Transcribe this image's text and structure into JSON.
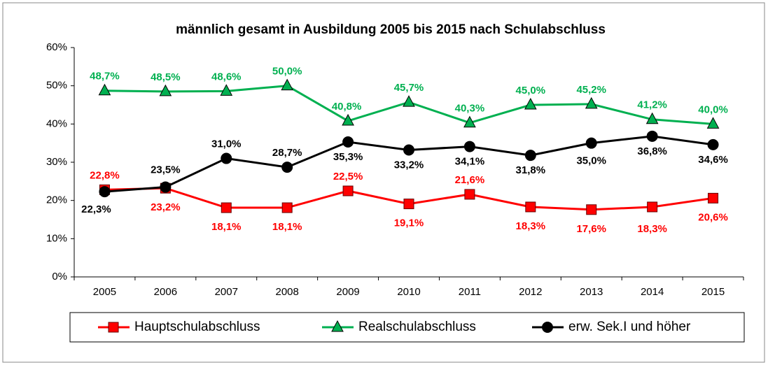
{
  "chart_data": {
    "type": "line",
    "title": "männlich gesamt in Ausbildung 2005 bis 2015 nach Schulabschluss",
    "categories": [
      "2005",
      "2006",
      "2007",
      "2008",
      "2009",
      "2010",
      "2011",
      "2012",
      "2013",
      "2014",
      "2015"
    ],
    "ylim": [
      0,
      60
    ],
    "yticks": [
      {
        "value": 0,
        "label": "0%"
      },
      {
        "value": 10,
        "label": "10%"
      },
      {
        "value": 20,
        "label": "20%"
      },
      {
        "value": 30,
        "label": "30%"
      },
      {
        "value": 40,
        "label": "40%"
      },
      {
        "value": 50,
        "label": "50%"
      },
      {
        "value": 60,
        "label": "60%"
      }
    ],
    "grid": false,
    "legend": "bottom",
    "series": [
      {
        "name": "Hauptschulabschluss",
        "color": "#ff0000",
        "marker": "square",
        "values": [
          22.8,
          23.2,
          18.1,
          18.1,
          22.5,
          19.1,
          21.6,
          18.3,
          17.6,
          18.3,
          20.6
        ],
        "value_labels": [
          "22,8%",
          "23,2%",
          "18,1%",
          "18,1%",
          "22,5%",
          "19,1%",
          "21,6%",
          "18,3%",
          "17,6%",
          "18,3%",
          "20,6%"
        ]
      },
      {
        "name": "Realschulabschluss",
        "color": "#00b050",
        "marker": "triangle",
        "values": [
          48.7,
          48.5,
          48.6,
          50.0,
          40.8,
          45.7,
          40.3,
          45.0,
          45.2,
          41.2,
          40.0
        ],
        "value_labels": [
          "48,7%",
          "48,5%",
          "48,6%",
          "50,0%",
          "40,8%",
          "45,7%",
          "40,3%",
          "45,0%",
          "45,2%",
          "41,2%",
          "40,0%"
        ]
      },
      {
        "name": "erw. Sek.I und höher",
        "color": "#000000",
        "marker": "circle",
        "values": [
          22.3,
          23.5,
          31.0,
          28.7,
          35.3,
          33.2,
          34.1,
          31.8,
          35.0,
          36.8,
          34.6
        ],
        "value_labels": [
          "22,3%",
          "23,5%",
          "31,0%",
          "28,7%",
          "35,3%",
          "33,2%",
          "34,1%",
          "31,8%",
          "35,0%",
          "36,8%",
          "34,6%"
        ]
      }
    ]
  }
}
